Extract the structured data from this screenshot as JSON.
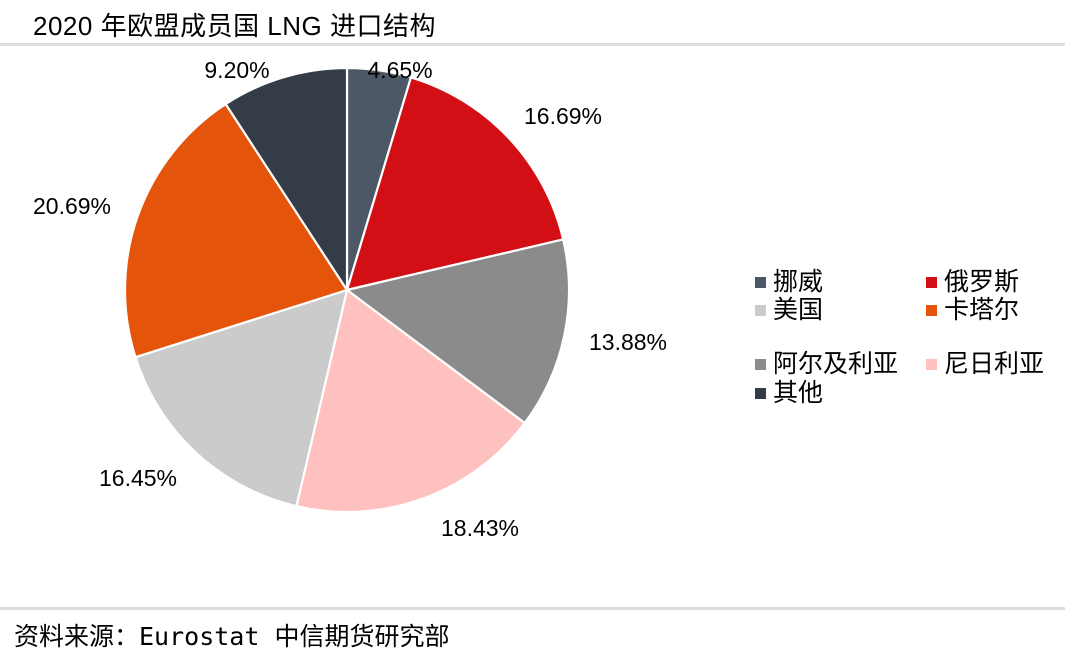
{
  "title": "2020 年欧盟成员国 LNG 进口结构",
  "source": "资料来源：Eurostat 中信期货研究部",
  "chart_data": {
    "type": "pie",
    "title": "2020 年欧盟成员国 LNG 进口结构",
    "start_angle_deg": 0,
    "direction": "clockwise",
    "data_labels": "percent-outside",
    "legend_position": "right-two-columns",
    "slices": [
      {
        "id": "norway",
        "label": "挪威",
        "value": 4.65,
        "display": "4.65%",
        "color": "#4D5866"
      },
      {
        "id": "russia",
        "label": "俄罗斯",
        "value": 16.69,
        "display": "16.69%",
        "color": "#D20F14"
      },
      {
        "id": "algeria",
        "label": "阿尔及利亚",
        "value": 13.88,
        "display": "13.88%",
        "color": "#8B8B8B"
      },
      {
        "id": "nigeria",
        "label": "尼日利亚",
        "value": 18.43,
        "display": "18.43%",
        "color": "#FFC1C0"
      },
      {
        "id": "usa",
        "label": "美国",
        "value": 16.45,
        "display": "16.45%",
        "color": "#CBCBCB"
      },
      {
        "id": "qatar",
        "label": "卡塔尔",
        "value": 20.69,
        "display": "20.69%",
        "color": "#E4540A"
      },
      {
        "id": "other",
        "label": "其他",
        "value": 9.2,
        "display": "9.20%",
        "color": "#333C47"
      }
    ],
    "legend_order": [
      "norway",
      "russia",
      "usa",
      "qatar",
      "algeria",
      "nigeria",
      "other"
    ]
  },
  "colors": {
    "divider": "#dedede",
    "background": "#ffffff",
    "text": "#000000"
  }
}
